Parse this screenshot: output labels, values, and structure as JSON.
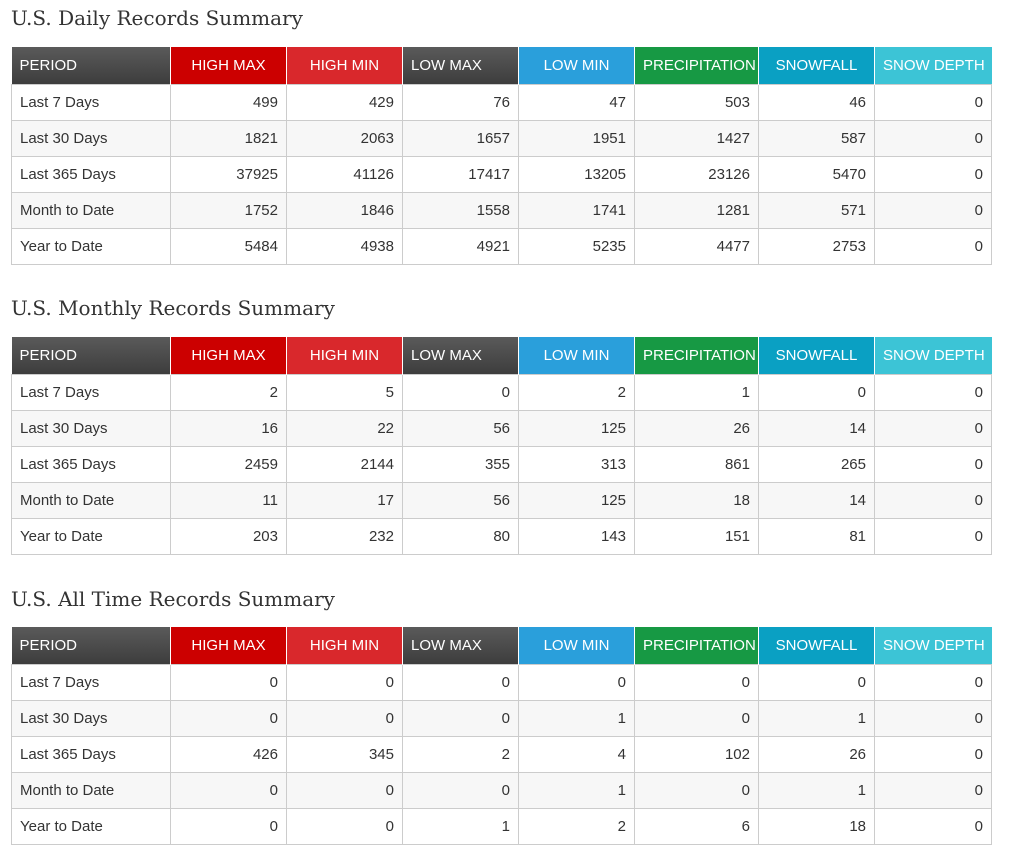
{
  "columns": [
    "PERIOD",
    "HIGH MAX",
    "HIGH MIN",
    "LOW MAX",
    "LOW MIN",
    "PRECIPITATION",
    "SNOWFALL",
    "SNOW DEPTH"
  ],
  "colors": {
    "high_max": "#cc0000",
    "high_min": "#d9282c",
    "low_min": "#2a9fdb",
    "precipitation": "#179944",
    "snowfall": "#0aa0c3",
    "snow_depth": "#3cc4d6",
    "period_header": "#4a4a4a"
  },
  "sections": [
    {
      "title": "U.S. Daily Records Summary",
      "rows": [
        {
          "period": "Last 7 Days",
          "values": [
            "499",
            "429",
            "76",
            "47",
            "503",
            "46",
            "0"
          ]
        },
        {
          "period": "Last 30 Days",
          "values": [
            "1821",
            "2063",
            "1657",
            "1951",
            "1427",
            "587",
            "0"
          ]
        },
        {
          "period": "Last 365 Days",
          "values": [
            "37925",
            "41126",
            "17417",
            "13205",
            "23126",
            "5470",
            "0"
          ]
        },
        {
          "period": "Month to Date",
          "values": [
            "1752",
            "1846",
            "1558",
            "1741",
            "1281",
            "571",
            "0"
          ]
        },
        {
          "period": "Year to Date",
          "values": [
            "5484",
            "4938",
            "4921",
            "5235",
            "4477",
            "2753",
            "0"
          ]
        }
      ]
    },
    {
      "title": "U.S. Monthly Records Summary",
      "rows": [
        {
          "period": "Last 7 Days",
          "values": [
            "2",
            "5",
            "0",
            "2",
            "1",
            "0",
            "0"
          ]
        },
        {
          "period": "Last 30 Days",
          "values": [
            "16",
            "22",
            "56",
            "125",
            "26",
            "14",
            "0"
          ]
        },
        {
          "period": "Last 365 Days",
          "values": [
            "2459",
            "2144",
            "355",
            "313",
            "861",
            "265",
            "0"
          ]
        },
        {
          "period": "Month to Date",
          "values": [
            "11",
            "17",
            "56",
            "125",
            "18",
            "14",
            "0"
          ]
        },
        {
          "period": "Year to Date",
          "values": [
            "203",
            "232",
            "80",
            "143",
            "151",
            "81",
            "0"
          ]
        }
      ]
    },
    {
      "title": "U.S. All Time Records Summary",
      "rows": [
        {
          "period": "Last 7 Days",
          "values": [
            "0",
            "0",
            "0",
            "0",
            "0",
            "0",
            "0"
          ]
        },
        {
          "period": "Last 30 Days",
          "values": [
            "0",
            "0",
            "0",
            "1",
            "0",
            "1",
            "0"
          ]
        },
        {
          "period": "Last 365 Days",
          "values": [
            "426",
            "345",
            "2",
            "4",
            "102",
            "26",
            "0"
          ]
        },
        {
          "period": "Month to Date",
          "values": [
            "0",
            "0",
            "0",
            "1",
            "0",
            "1",
            "0"
          ]
        },
        {
          "period": "Year to Date",
          "values": [
            "0",
            "0",
            "1",
            "2",
            "6",
            "18",
            "0"
          ]
        }
      ]
    }
  ]
}
